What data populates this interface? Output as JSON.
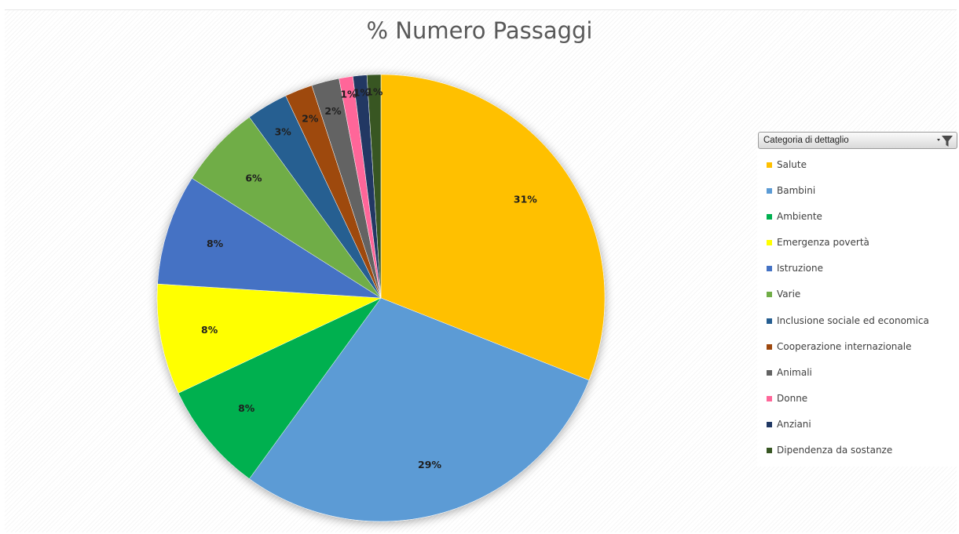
{
  "chart_data": {
    "type": "pie",
    "title": "% Numero Passaggi",
    "legend_title": "Categoria di dettaglio",
    "legend_position": "right",
    "slices": [
      {
        "name": "Salute",
        "value": 31,
        "label": "31%",
        "color": "#ffc000"
      },
      {
        "name": "Bambini",
        "value": 29,
        "label": "29%",
        "color": "#5b9bd5"
      },
      {
        "name": "Ambiente",
        "value": 8,
        "label": "8%",
        "color": "#00b050"
      },
      {
        "name": "Emergenza povertà",
        "value": 8,
        "label": "8%",
        "color": "#ffff00"
      },
      {
        "name": "Istruzione",
        "value": 8,
        "label": "8%",
        "color": "#4472c4"
      },
      {
        "name": "Varie",
        "value": 6,
        "label": "6%",
        "color": "#70ad47"
      },
      {
        "name": "Inclusione sociale ed economica",
        "value": 3,
        "label": "3%",
        "color": "#255e91"
      },
      {
        "name": "Cooperazione internazionale",
        "value": 2,
        "label": "2%",
        "color": "#9e480e"
      },
      {
        "name": "Animali",
        "value": 2,
        "label": "2%",
        "color": "#636363"
      },
      {
        "name": "Donne",
        "value": 1,
        "label": "1%",
        "color": "#ff6699"
      },
      {
        "name": "Anziani",
        "value": 1,
        "label": "1%",
        "color": "#203864"
      },
      {
        "name": "Dipendenza da sostanze",
        "value": 1,
        "label": "1%",
        "color": "#375623"
      }
    ]
  }
}
